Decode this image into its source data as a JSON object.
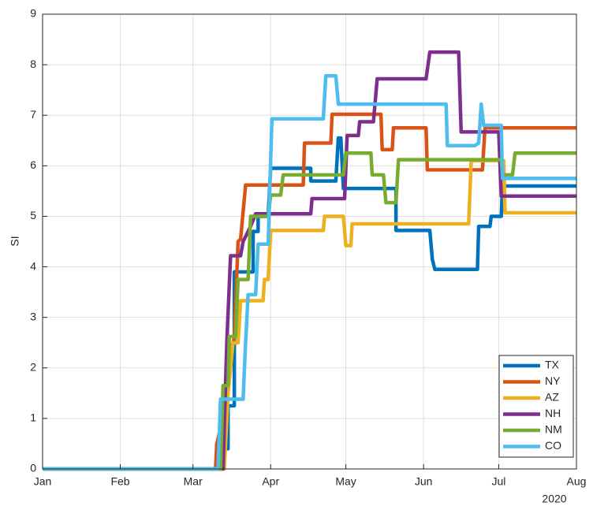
{
  "chart_data": {
    "type": "line",
    "y_label": "SI",
    "x_year_label": "2020",
    "xlim": [
      0,
      213
    ],
    "xticks": [
      {
        "value": 0,
        "label": "Jan"
      },
      {
        "value": 31,
        "label": "Feb"
      },
      {
        "value": 60,
        "label": "Mar"
      },
      {
        "value": 91,
        "label": "Apr"
      },
      {
        "value": 121,
        "label": "May"
      },
      {
        "value": 152,
        "label": "Jun"
      },
      {
        "value": 182,
        "label": "Jul"
      },
      {
        "value": 213,
        "label": "Aug"
      }
    ],
    "ylim": [
      0,
      9
    ],
    "yticks": [
      0,
      1,
      2,
      3,
      4,
      5,
      6,
      7,
      8,
      9
    ],
    "grid": true,
    "legend": "southeast",
    "series": [
      {
        "name": "TX",
        "color": "#0072BD",
        "x": [
          0,
          70.5,
          70.5,
          74,
          74,
          76.5,
          76.5,
          84,
          84,
          86,
          86,
          90,
          91,
          107,
          107,
          117,
          118,
          119,
          120,
          141,
          141,
          154.5,
          155.5,
          156.5,
          173.5,
          174,
          178.5,
          179,
          183,
          183.5,
          213
        ],
        "values": [
          0,
          0,
          0.4,
          0.4,
          1.25,
          1.25,
          3.9,
          3.9,
          4.7,
          4.7,
          5,
          5,
          5.95,
          5.95,
          5.7,
          5.7,
          6.55,
          6.55,
          5.55,
          5.55,
          4.72,
          4.72,
          4.15,
          3.95,
          3.95,
          4.8,
          4.8,
          5,
          5,
          5.6,
          5.6
        ]
      },
      {
        "name": "NY",
        "color": "#D95319",
        "x": [
          0,
          69,
          69.5,
          71,
          72.5,
          74.5,
          76.5,
          78,
          79,
          81,
          104,
          104.5,
          115,
          115.5,
          135,
          135.5,
          139.5,
          140,
          153,
          153.5,
          175.5,
          176.5,
          213
        ],
        "values": [
          0,
          0,
          0.5,
          0.8,
          0.8,
          2.2,
          2.6,
          4.5,
          4.55,
          5.62,
          5.62,
          6.45,
          6.45,
          7.02,
          7.02,
          6.32,
          6.32,
          6.75,
          6.75,
          5.92,
          5.92,
          6.75,
          6.75
        ]
      },
      {
        "name": "AZ",
        "color": "#EDB120",
        "x": [
          0,
          72.5,
          74,
          76,
          78,
          79,
          88,
          88.5,
          90,
          91,
          112,
          112.5,
          120,
          121,
          123,
          123.5,
          170,
          171,
          184,
          184.5,
          213
        ],
        "values": [
          0,
          0,
          1.5,
          2.5,
          2.5,
          3.33,
          3.33,
          3.75,
          3.75,
          4.72,
          4.72,
          5,
          5,
          4.42,
          4.42,
          4.85,
          4.85,
          6.1,
          6.1,
          5.07,
          5.07
        ]
      },
      {
        "name": "NH",
        "color": "#7E2F8E",
        "x": [
          0,
          72,
          73.5,
          75,
          79,
          80,
          83,
          85,
          107,
          107.5,
          120.5,
          121.5,
          126,
          126.5,
          132,
          133.5,
          153,
          154.5,
          166,
          167,
          182,
          183,
          213
        ],
        "values": [
          0,
          0,
          2.5,
          4.22,
          4.22,
          4.5,
          4.8,
          5.05,
          5.05,
          5.35,
          5.35,
          6.6,
          6.6,
          6.87,
          6.87,
          7.72,
          7.72,
          8.25,
          8.25,
          6.67,
          6.67,
          5.4,
          5.4
        ]
      },
      {
        "name": "NM",
        "color": "#77AC30",
        "x": [
          0,
          71,
          72,
          74,
          74.5,
          77,
          78,
          82,
          83,
          90,
          91,
          95,
          96,
          120,
          121,
          131,
          131.5,
          136,
          137,
          141,
          142,
          183,
          183.5,
          187.5,
          188.5,
          213
        ],
        "values": [
          0,
          0,
          1.65,
          1.65,
          2.62,
          2.62,
          3.75,
          3.75,
          5,
          5,
          5.42,
          5.42,
          5.82,
          5.82,
          6.25,
          6.25,
          5.82,
          5.82,
          5.27,
          5.27,
          6.12,
          6.12,
          5.82,
          5.82,
          6.25,
          6.25
        ]
      },
      {
        "name": "CO",
        "color": "#4DBEEE",
        "x": [
          0,
          70,
          71,
          80,
          81,
          82,
          85,
          86,
          90,
          91.5,
          112,
          113,
          117,
          118,
          161,
          161.5,
          172.5,
          174,
          175,
          176,
          183,
          183.5,
          213
        ],
        "values": [
          0,
          0,
          1.38,
          1.38,
          2.5,
          3.45,
          3.45,
          4.45,
          4.45,
          6.93,
          6.93,
          7.78,
          7.78,
          7.22,
          7.22,
          6.4,
          6.4,
          6.45,
          7.22,
          6.8,
          6.8,
          5.75,
          5.75
        ]
      }
    ]
  }
}
